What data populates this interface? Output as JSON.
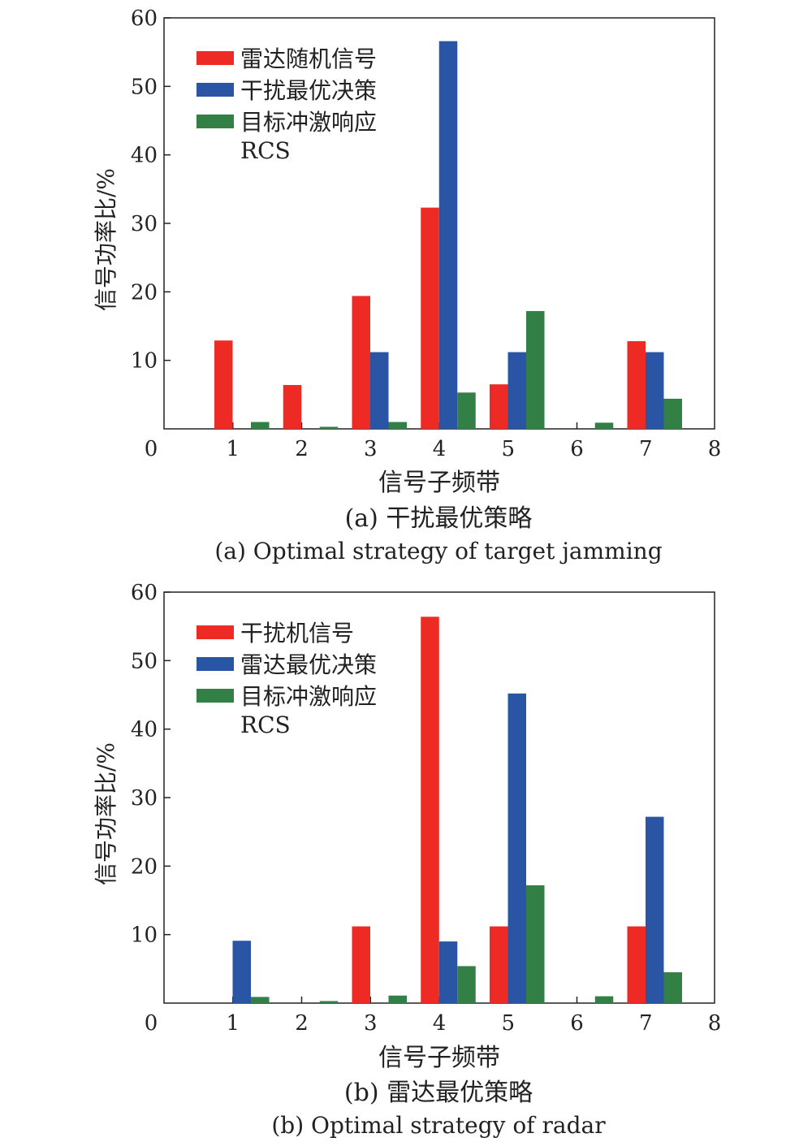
{
  "colors": {
    "red": "#ee2a24",
    "blue": "#2a55a4",
    "green": "#338046"
  },
  "chart_data": [
    {
      "type": "bar",
      "xlabel": "信号子频带",
      "ylabel": "信号功率比/%",
      "xlim": [
        0,
        8
      ],
      "ylim": [
        0,
        60
      ],
      "xticks": [
        "0",
        "1",
        "2",
        "3",
        "4",
        "5",
        "6",
        "7",
        "8"
      ],
      "yticks": [
        "10",
        "20",
        "30",
        "40",
        "50",
        "60"
      ],
      "grid": false,
      "legend_position": "top-left",
      "legend_extra": "RCS",
      "categories": [
        1,
        2,
        3,
        4,
        5,
        6,
        7
      ],
      "series": [
        {
          "name": "雷达随机信号",
          "color": "red",
          "values": [
            12.9,
            6.4,
            19.4,
            32.3,
            6.5,
            0,
            12.8
          ]
        },
        {
          "name": "干扰最优决策",
          "color": "blue",
          "values": [
            0,
            0,
            11.2,
            56.6,
            11.2,
            0,
            11.2
          ]
        },
        {
          "name": "目标冲激响应",
          "color": "green",
          "values": [
            1.0,
            0.3,
            1.0,
            5.3,
            17.2,
            0.9,
            4.4
          ]
        }
      ],
      "caption_zh": "(a) 干扰最优策略",
      "caption_en": "(a) Optimal strategy of target jamming"
    },
    {
      "type": "bar",
      "xlabel": "信号子频带",
      "ylabel": "信号功率比/%",
      "xlim": [
        0,
        8
      ],
      "ylim": [
        0,
        60
      ],
      "xticks": [
        "0",
        "1",
        "2",
        "3",
        "4",
        "5",
        "6",
        "7",
        "8"
      ],
      "yticks": [
        "10",
        "20",
        "30",
        "40",
        "50",
        "60"
      ],
      "grid": false,
      "legend_position": "top-left",
      "legend_extra": "RCS",
      "categories": [
        1,
        2,
        3,
        4,
        5,
        6,
        7
      ],
      "series": [
        {
          "name": "干扰机信号",
          "color": "red",
          "values": [
            0,
            0,
            11.2,
            56.4,
            11.2,
            0,
            11.2
          ]
        },
        {
          "name": "雷达最优决策",
          "color": "blue",
          "values": [
            9.1,
            0,
            0,
            9.0,
            45.2,
            0,
            27.2
          ]
        },
        {
          "name": "目标冲激响应",
          "color": "green",
          "values": [
            0.9,
            0.3,
            1.1,
            5.4,
            17.2,
            1.0,
            4.5
          ]
        }
      ],
      "caption_zh": "(b) 雷达最优策略",
      "caption_en": "(b) Optimal strategy of radar"
    }
  ]
}
